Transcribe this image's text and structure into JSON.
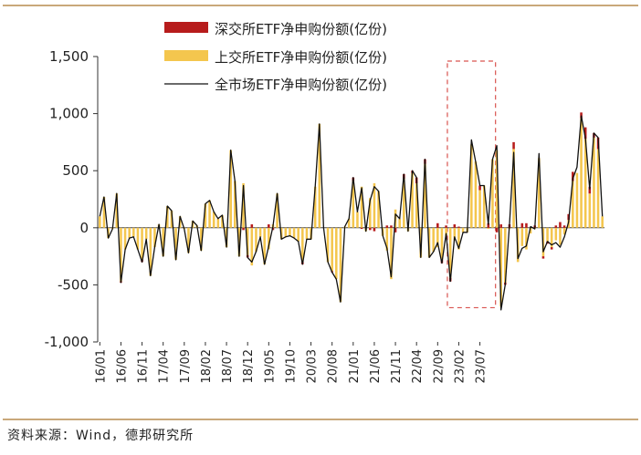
{
  "source": "资料来源：Wind，德邦研究所",
  "chart_data": {
    "type": "bar",
    "ylim": [
      -1000,
      1500
    ],
    "y_ticks": [
      "1,500",
      "1,000",
      "500",
      "0",
      "-500",
      "-1,000"
    ],
    "y_tick_values": [
      1500,
      1000,
      500,
      0,
      -500,
      -1000
    ],
    "x_tick_labels": [
      "16/01",
      "16/06",
      "16/11",
      "17/04",
      "17/09",
      "18/02",
      "18/07",
      "18/12",
      "19/05",
      "19/10",
      "20/03",
      "20/08",
      "21/01",
      "21/06",
      "21/11",
      "22/04",
      "22/09",
      "23/02",
      "23/07"
    ],
    "months_start": "2016-01",
    "series": [
      {
        "name": "深交所ETF净申购份额(亿份)",
        "kind": "bar",
        "color": "#b71c1c",
        "values": [
          0,
          0,
          0,
          0,
          0,
          -10,
          0,
          0,
          0,
          0,
          -20,
          0,
          0,
          0,
          0,
          0,
          0,
          0,
          0,
          0,
          0,
          0,
          0,
          0,
          0,
          0,
          0,
          0,
          0,
          0,
          0,
          0,
          0,
          0,
          -20,
          -20,
          30,
          0,
          0,
          0,
          30,
          -20,
          0,
          0,
          0,
          0,
          0,
          0,
          -20,
          0,
          0,
          0,
          0,
          0,
          0,
          -10,
          0,
          0,
          0,
          0,
          30,
          0,
          -10,
          0,
          -20,
          -30,
          0,
          0,
          20,
          20,
          -40,
          0,
          40,
          0,
          20,
          50,
          0,
          40,
          0,
          0,
          40,
          -30,
          20,
          -30,
          30,
          10,
          0,
          0,
          0,
          0,
          40,
          0,
          40,
          0,
          -40,
          30,
          -20,
          30,
          60,
          0,
          40,
          40,
          0,
          20,
          0,
          -20,
          -20,
          -20,
          20,
          50,
          20,
          50,
          80,
          0,
          50,
          100,
          60,
          40,
          100,
          0
        ]
      },
      {
        "name": "上交所ETF净申购份额(亿份)",
        "kind": "bar",
        "color": "#f4c64e",
        "values": [
          100,
          270,
          -90,
          -10,
          300,
          -470,
          -190,
          -90,
          -80,
          -190,
          -280,
          -100,
          -420,
          -170,
          30,
          -250,
          190,
          150,
          -280,
          100,
          -10,
          -220,
          60,
          20,
          -200,
          210,
          240,
          140,
          80,
          110,
          -170,
          680,
          410,
          -250,
          390,
          -240,
          -330,
          -210,
          -80,
          -320,
          -190,
          30,
          300,
          -100,
          -80,
          -70,
          -90,
          -120,
          -300,
          -100,
          -100,
          360,
          910,
          0,
          -300,
          -380,
          -450,
          -650,
          10,
          80,
          410,
          140,
          360,
          -30,
          260,
          390,
          320,
          -70,
          -200,
          -450,
          160,
          80,
          430,
          -30,
          480,
          390,
          -260,
          560,
          -260,
          -210,
          -170,
          -280,
          -70,
          -440,
          -110,
          -190,
          -40,
          -40,
          730,
          580,
          330,
          370,
          -10,
          600,
          680,
          -690,
          -480,
          -10,
          690,
          -300,
          -160,
          -190,
          -50,
          -10,
          610,
          -250,
          -120,
          -170,
          -110,
          -150,
          -60,
          70,
          410,
          480,
          960,
          780,
          300,
          790,
          690,
          100
        ]
      },
      {
        "name": "全市场ETF净申购份额(亿份)",
        "kind": "line",
        "color": "#111111",
        "values": [
          100,
          270,
          -90,
          -10,
          300,
          -480,
          -190,
          -90,
          -80,
          -190,
          -300,
          -100,
          -420,
          -170,
          30,
          -250,
          190,
          150,
          -280,
          100,
          -10,
          -220,
          60,
          20,
          -200,
          210,
          240,
          140,
          80,
          110,
          -170,
          680,
          410,
          -250,
          370,
          -260,
          -300,
          -210,
          -80,
          -320,
          -160,
          10,
          300,
          -100,
          -80,
          -70,
          -90,
          -120,
          -320,
          -100,
          -100,
          360,
          910,
          0,
          -300,
          -390,
          -450,
          -650,
          10,
          80,
          440,
          140,
          350,
          -30,
          240,
          360,
          320,
          -70,
          -180,
          -430,
          120,
          80,
          470,
          -30,
          500,
          440,
          -260,
          600,
          -260,
          -210,
          -130,
          -310,
          -50,
          -470,
          -80,
          -180,
          -40,
          -40,
          770,
          580,
          370,
          370,
          30,
          600,
          720,
          -720,
          -500,
          20,
          660,
          -270,
          -180,
          -160,
          10,
          -10,
          650,
          -210,
          -120,
          -150,
          -130,
          -170,
          -80,
          50,
          430,
          530,
          980,
          780,
          340,
          830,
          790,
          100
        ]
      }
    ],
    "highlight_window": [
      "2022-12",
      "2023-10"
    ],
    "legend_position": "top-center",
    "grid": false
  }
}
